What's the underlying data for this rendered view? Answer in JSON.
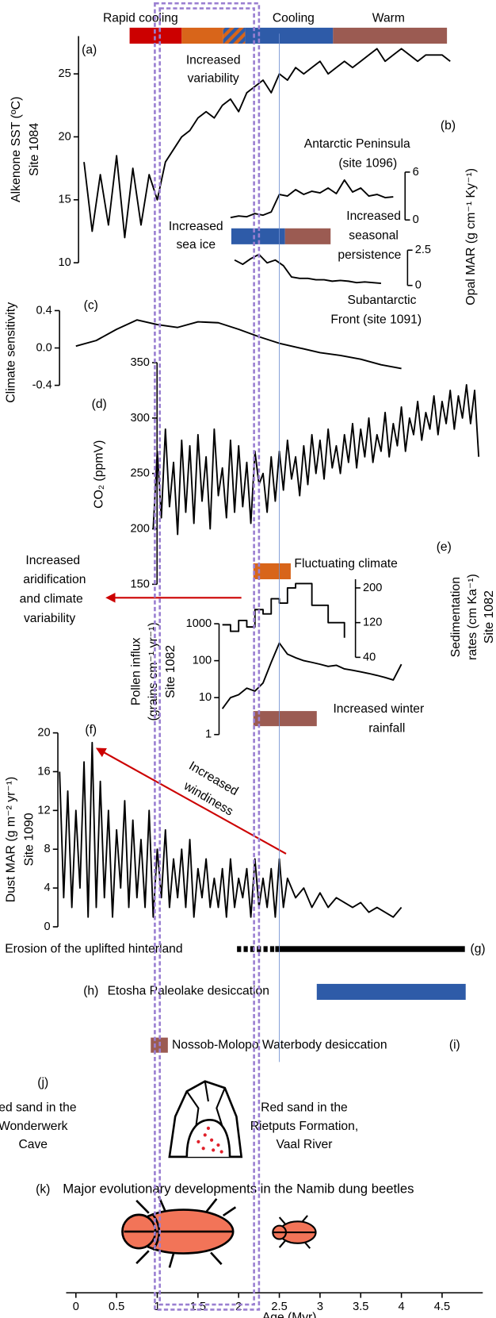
{
  "chart_data": [
    {
      "type": "range",
      "bands": [
        {
          "label": [
            "Rapid cooling"
          ],
          "start": 0.66,
          "end": 1.3,
          "color": "#cc0000"
        },
        {
          "label": [
            "Increased",
            "variability"
          ],
          "start": 1.3,
          "end": 1.81,
          "color": "#d8651a"
        },
        {
          "start": 1.81,
          "end": 2.08,
          "color": "#d8651a",
          "pattern": "hatch",
          "hatch_color": "#2e5ba8"
        },
        {
          "label": [
            "Cooling"
          ],
          "start": 2.08,
          "end": 3.16,
          "color": "#2e5ba8"
        },
        {
          "label": [
            "Warm"
          ],
          "start": 3.16,
          "end": 4.56,
          "color": "#9b5b52"
        }
      ]
    },
    {
      "type": "line",
      "label": "(a)",
      "ylabel": [
        "Alkenone SST (ºC)",
        "Site 1084"
      ],
      "ylim": [
        10,
        28
      ],
      "yticks": [
        10,
        15,
        20,
        25
      ],
      "color": "#000000",
      "x": [
        0.1,
        0.2,
        0.3,
        0.4,
        0.5,
        0.6,
        0.7,
        0.8,
        0.9,
        1,
        1.1,
        1.2,
        1.3,
        1.4,
        1.5,
        1.6,
        1.7,
        1.8,
        1.9,
        2,
        2.1,
        2.2,
        2.3,
        2.4,
        2.5,
        2.6,
        2.7,
        2.8,
        2.9,
        3,
        3.1,
        3.2,
        3.3,
        3.4,
        3.5,
        3.6,
        3.7,
        3.8,
        3.9,
        4,
        4.1,
        4.2,
        4.3,
        4.4,
        4.5,
        4.6
      ],
      "values": [
        18,
        12.5,
        17,
        13,
        18.5,
        12,
        17.5,
        13,
        17,
        15,
        18,
        19,
        20,
        20.5,
        21.5,
        22,
        21.5,
        22.5,
        23,
        22,
        23.5,
        24,
        24.5,
        23.5,
        25,
        24.5,
        25.5,
        25,
        25.5,
        26,
        25,
        25.5,
        26,
        25.5,
        26,
        26.5,
        27,
        26,
        26.5,
        27,
        26.5,
        26,
        26.5,
        26.5,
        26.5,
        26
      ]
    },
    {
      "type": "line",
      "label": "(b)",
      "ylabel": [
        "Opal MAR (g cm⁻¹ Ky⁻¹)"
      ],
      "annotation": [
        "Antarctic Peninsula",
        "(site 1096)"
      ],
      "ylim": [
        0,
        6
      ],
      "yticks": [
        0,
        6
      ],
      "color": "#000000",
      "x": [
        1.9,
        2,
        2.1,
        2.2,
        2.3,
        2.4,
        2.5,
        2.6,
        2.7,
        2.8,
        2.9,
        3,
        3.1,
        3.2,
        3.3,
        3.4,
        3.5,
        3.6,
        3.7,
        3.8,
        3.9
      ],
      "values": [
        0.3,
        0.5,
        0.4,
        0.8,
        0.6,
        1.0,
        3.2,
        3.0,
        3.8,
        3.2,
        3.6,
        3.4,
        4.0,
        3.3,
        5.0,
        3.5,
        4.0,
        3.0,
        3.2,
        2.8,
        2.9
      ]
    },
    {
      "type": "line",
      "annotation": [
        "Subantarctic",
        "Front (site 1091)"
      ],
      "ylim": [
        0,
        2.5
      ],
      "yticks": [
        0,
        2.5
      ],
      "color": "#000000",
      "x": [
        1.95,
        2.05,
        2.15,
        2.25,
        2.35,
        2.45,
        2.55,
        2.65,
        2.75,
        2.85,
        2.95,
        3.05,
        3.15,
        3.25,
        3.35,
        3.45,
        3.55,
        3.65,
        3.75
      ],
      "values": [
        1.8,
        1.5,
        1.9,
        2.2,
        1.6,
        1.8,
        1.4,
        0.6,
        0.5,
        0.5,
        0.4,
        0.4,
        0.3,
        0.35,
        0.3,
        0.2,
        0.25,
        0.2,
        0.15
      ]
    },
    {
      "type": "range",
      "bands": [
        {
          "label": [
            "Increased",
            "sea ice"
          ],
          "start": 1.91,
          "end": 2.57,
          "color": "#2e5ba8"
        },
        {
          "label": [
            "Increased",
            "seasonal",
            "persistence"
          ],
          "start": 2.57,
          "end": 3.13,
          "color": "#9b5b52"
        }
      ]
    },
    {
      "type": "line",
      "label": "(c)",
      "ylabel": [
        "Climate sensitivity"
      ],
      "ylim": [
        -0.4,
        0.4
      ],
      "yticks": [
        -0.4,
        {
          "value": 0,
          "label": "0.0"
        },
        0.4
      ],
      "color": "#000000",
      "x": [
        0,
        0.25,
        0.5,
        0.75,
        1,
        1.25,
        1.5,
        1.75,
        2,
        2.25,
        2.5,
        2.75,
        3,
        3.25,
        3.5,
        3.75,
        4
      ],
      "values": [
        0.02,
        0.08,
        0.2,
        0.3,
        0.25,
        0.22,
        0.28,
        0.27,
        0.2,
        0.12,
        0.05,
        0,
        -0.05,
        -0.08,
        -0.12,
        -0.18,
        -0.22
      ]
    },
    {
      "type": "line",
      "label": "(d)",
      "ylabel": [
        "CO₂ (ppmV)"
      ],
      "ylim": [
        150,
        350
      ],
      "yticks": [
        150,
        200,
        250,
        300,
        350
      ],
      "color": "#000000",
      "x": [
        0.95,
        1,
        1.05,
        1.1,
        1.15,
        1.2,
        1.25,
        1.3,
        1.35,
        1.4,
        1.45,
        1.5,
        1.55,
        1.6,
        1.65,
        1.7,
        1.75,
        1.8,
        1.85,
        1.9,
        1.95,
        2,
        2.05,
        2.1,
        2.15,
        2.2,
        2.25,
        2.3,
        2.35,
        2.4,
        2.45,
        2.5,
        2.55,
        2.6,
        2.65,
        2.7,
        2.75,
        2.8,
        2.85,
        2.9,
        2.95,
        3,
        3.05,
        3.1,
        3.15,
        3.2,
        3.25,
        3.3,
        3.35,
        3.4,
        3.45,
        3.5,
        3.55,
        3.6,
        3.65,
        3.7,
        3.75,
        3.8,
        3.85,
        3.9,
        3.95,
        4,
        4.05,
        4.1,
        4.15,
        4.2,
        4.25,
        4.3,
        4.35,
        4.4,
        4.45,
        4.5,
        4.55,
        4.6,
        4.65,
        4.7,
        4.75,
        4.8,
        4.85,
        4.9,
        4.95
      ],
      "values": [
        200,
        270,
        210,
        290,
        220,
        260,
        195,
        280,
        215,
        275,
        205,
        285,
        225,
        265,
        200,
        290,
        230,
        255,
        210,
        280,
        215,
        275,
        220,
        260,
        205,
        270,
        240,
        250,
        215,
        265,
        225,
        270,
        235,
        280,
        245,
        265,
        230,
        275,
        240,
        285,
        250,
        280,
        245,
        290,
        255,
        275,
        250,
        285,
        260,
        295,
        255,
        290,
        265,
        300,
        260,
        285,
        270,
        305,
        265,
        295,
        275,
        310,
        270,
        300,
        285,
        315,
        280,
        305,
        290,
        320,
        285,
        315,
        295,
        325,
        290,
        320,
        300,
        330,
        295,
        325,
        265
      ]
    },
    {
      "type": "range",
      "annotation": [
        "Increased",
        "aridification",
        "and climate",
        "variability"
      ],
      "annotation_color": "#cc0000",
      "bands": [
        {
          "label": [
            "Fluctuating climate"
          ],
          "start": 2.18,
          "end": 2.64,
          "color": "#d8651a"
        },
        {
          "label": [
            "Increased winter",
            "rainfall"
          ],
          "start": 2.18,
          "end": 2.96,
          "color": "#9b5b52"
        }
      ]
    },
    {
      "type": "step",
      "label": "(e)",
      "ylabel": [
        "Sedimentation",
        "rates (cm Ka⁻¹)",
        "Site 1082"
      ],
      "ylim": [
        40,
        220
      ],
      "yticks": [
        40,
        120,
        200
      ],
      "color": "#000000",
      "x": [
        1.8,
        1.9,
        2,
        2.1,
        2.2,
        2.3,
        2.4,
        2.5,
        2.6,
        2.7,
        2.9,
        3.1,
        3.3
      ],
      "values": [
        115,
        100,
        125,
        110,
        150,
        140,
        175,
        165,
        200,
        210,
        160,
        120,
        85
      ]
    },
    {
      "type": "line",
      "log": true,
      "ylabel": [
        "Pollen influx",
        "(grains cm⁻¹ yr⁻¹)",
        "Site 1082"
      ],
      "ylim": [
        1,
        1000
      ],
      "yticks": [
        1,
        10,
        100,
        1000
      ],
      "color": "#000000",
      "x": [
        1.8,
        1.9,
        2,
        2.1,
        2.2,
        2.3,
        2.4,
        2.5,
        2.6,
        2.7,
        2.8,
        2.9,
        3,
        3.1,
        3.2,
        3.3,
        3.4,
        3.5,
        3.6,
        3.7,
        3.8,
        3.9,
        4
      ],
      "values": [
        5,
        10,
        12,
        18,
        15,
        25,
        90,
        300,
        150,
        120,
        100,
        90,
        80,
        70,
        75,
        60,
        55,
        50,
        45,
        40,
        35,
        30,
        80
      ]
    },
    {
      "type": "line",
      "label": "(f)",
      "ylabel": [
        "Dust MAR (g m⁻² yr⁻¹)",
        "Site 1090"
      ],
      "annotation": [
        "Increased",
        "windiness"
      ],
      "annotation_color": "#cc0000",
      "ylim": [
        0,
        20
      ],
      "yticks": [
        0,
        4,
        8,
        12,
        16,
        20
      ],
      "color": "#000000",
      "x": [
        -0.2,
        -0.15,
        -0.1,
        -0.05,
        0,
        0.05,
        0.1,
        0.15,
        0.2,
        0.25,
        0.3,
        0.35,
        0.4,
        0.45,
        0.5,
        0.55,
        0.6,
        0.65,
        0.7,
        0.75,
        0.8,
        0.85,
        0.9,
        0.95,
        1,
        1.05,
        1.1,
        1.15,
        1.2,
        1.25,
        1.3,
        1.35,
        1.4,
        1.45,
        1.5,
        1.55,
        1.6,
        1.65,
        1.7,
        1.75,
        1.8,
        1.85,
        1.9,
        1.95,
        2,
        2.05,
        2.1,
        2.15,
        2.2,
        2.25,
        2.3,
        2.35,
        2.4,
        2.45,
        2.5,
        2.55,
        2.6,
        2.7,
        2.8,
        2.9,
        3,
        3.1,
        3.2,
        3.3,
        3.4,
        3.5,
        3.6,
        3.7,
        3.8,
        3.9,
        4
      ],
      "values": [
        16,
        3,
        14,
        2,
        12,
        4,
        17,
        1,
        19,
        2,
        15,
        3,
        12,
        1,
        10,
        4,
        13,
        2,
        11,
        3,
        9,
        2,
        12,
        1,
        8,
        3,
        10,
        2,
        7,
        3,
        8,
        2,
        9,
        1,
        6,
        3,
        7,
        2,
        5,
        2,
        6,
        1,
        7,
        2,
        5,
        3,
        6,
        1,
        7,
        2,
        5,
        2,
        6,
        1,
        7,
        2,
        5,
        3,
        4,
        2,
        3.5,
        2,
        3,
        2.5,
        2,
        2.5,
        1.5,
        2,
        1.5,
        1,
        2
      ]
    },
    {
      "type": "range",
      "label": "(g)",
      "text": "Erosion of the uplifted hinterland",
      "text_color": "#000000",
      "bands": [
        {
          "start": 1.98,
          "end": 2.45,
          "color": "#000000",
          "style": "dashed"
        },
        {
          "start": 2.45,
          "end": 4.78,
          "color": "#000000"
        }
      ]
    },
    {
      "type": "range",
      "label": "(h)",
      "text": "Etosha Paleolake desiccation",
      "text_color": "#2e5ba8",
      "bands": [
        {
          "start": 2.96,
          "end": 4.79,
          "color": "#2e5ba8"
        }
      ]
    },
    {
      "type": "range",
      "label": "(i)",
      "text": "Nossob-Molopo Waterbody desiccation",
      "text_color": "#9b5b52",
      "bands": [
        {
          "start": 0.92,
          "end": 1.13,
          "color": "#9b5b52"
        }
      ]
    },
    {
      "type": "text",
      "label": "(j)",
      "left": [
        "Red sand in the",
        "Wonderwerk",
        "Cave"
      ],
      "right": [
        "Red sand in the",
        "Rietputs Formation,",
        "Vaal River"
      ],
      "color": "#cc0000"
    },
    {
      "type": "text",
      "label": "(k)",
      "text": "Major evolutionary developments in the Namib dung beetles",
      "color": "#f27458"
    },
    {
      "type": "axis",
      "xlabel": "Age (Myr)",
      "xlim": [
        -0.12,
        5
      ],
      "xticks": [
        0,
        0.5,
        1,
        1.5,
        2,
        2.5,
        3,
        3.5,
        4,
        4.5
      ],
      "highlight": {
        "start": 0.97,
        "end": 2.25
      },
      "highlight_color": "#9a7fd1",
      "reference_line": 2.5,
      "reference_color": "#6f8fd0"
    }
  ]
}
